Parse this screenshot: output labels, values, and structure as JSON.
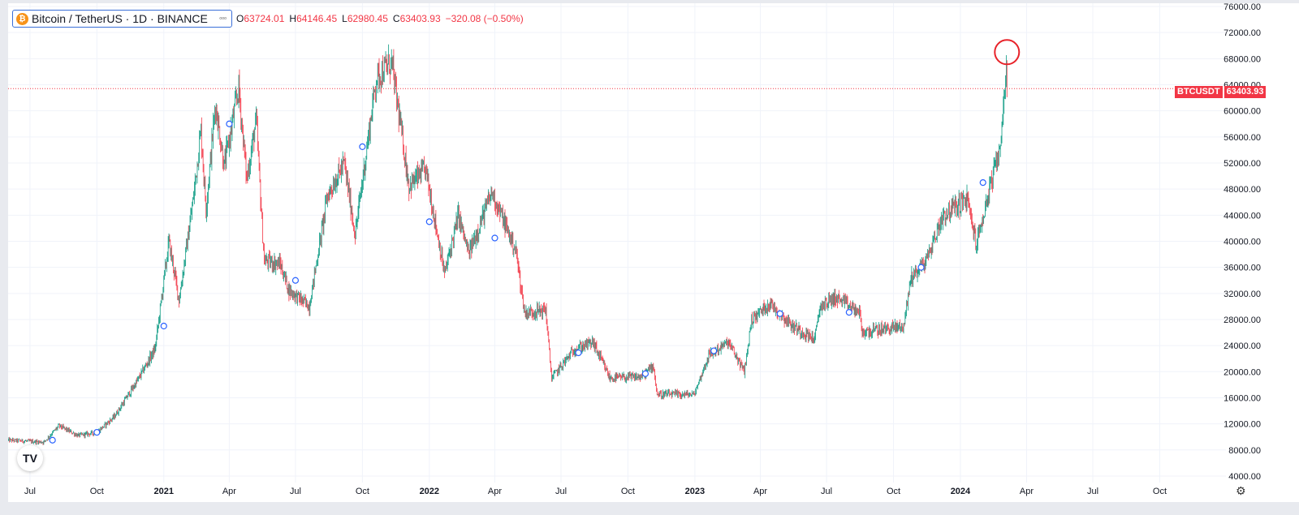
{
  "header": {
    "symbol_label": "Bitcoin / TetherUS · 1D · BINANCE",
    "ohlc": [
      {
        "label": "O",
        "value": "63724.01"
      },
      {
        "label": "H",
        "value": "64146.45"
      },
      {
        "label": "L",
        "value": "62980.45"
      },
      {
        "label": "C",
        "value": "63403.93"
      },
      {
        "label": "",
        "value": "−320.08 (−0.50%)"
      }
    ]
  },
  "price_tag": {
    "ticker": "BTCUSDT",
    "price": "63403.93"
  },
  "colors": {
    "up": "#089981",
    "down": "#f23645",
    "grid": "#f0f3fa",
    "marker": "#2962ff",
    "highlight": "#e8232a"
  },
  "icons": {
    "logo": "tradingview-logo-icon",
    "settings": "gear-icon",
    "symbol": "bitcoin-icon"
  },
  "chart_data": {
    "type": "candlestick",
    "instrument": "BTCUSDT",
    "interval": "1D",
    "y_axis": {
      "side": "right",
      "range": [
        3000,
        76500
      ],
      "ticks": [
        4000,
        8000,
        12000,
        16000,
        20000,
        24000,
        28000,
        32000,
        36000,
        40000,
        44000,
        48000,
        52000,
        56000,
        60000,
        64000,
        68000,
        72000,
        76000
      ],
      "tick_labels": [
        "4000.00",
        "8000.00",
        "12000.00",
        "16000.00",
        "20000.00",
        "24000.00",
        "28000.00",
        "32000.00",
        "36000.00",
        "40000.00",
        "44000.00",
        "48000.00",
        "52000.00",
        "56000.00",
        "60000.00",
        "64000.00",
        "68000.00",
        "72000.00",
        "76000.00"
      ]
    },
    "x_axis": {
      "range": [
        "2020-06-01",
        "2024-12-31"
      ],
      "ticks": [
        "2020-07-01",
        "2020-10-01",
        "2021-01-01",
        "2021-04-01",
        "2021-07-01",
        "2021-10-01",
        "2022-01-01",
        "2022-04-01",
        "2022-07-01",
        "2022-10-01",
        "2023-01-01",
        "2023-04-01",
        "2023-07-01",
        "2023-10-01",
        "2024-01-01",
        "2024-04-01",
        "2024-07-01",
        "2024-10-01"
      ],
      "tick_labels": [
        "Jul",
        "Oct",
        "2021",
        "Apr",
        "Jul",
        "Oct",
        "2022",
        "Apr",
        "Jul",
        "Oct",
        "2023",
        "Apr",
        "Jul",
        "Oct",
        "2024",
        "Apr",
        "Jul",
        "Oct"
      ],
      "bold_labels": [
        "2021",
        "2022",
        "2023",
        "2024"
      ]
    },
    "grid": true,
    "price_trend_keypoints": [
      [
        "2020-06-01",
        9500
      ],
      [
        "2020-07-20",
        9200
      ],
      [
        "2020-08-10",
        11700
      ],
      [
        "2020-09-05",
        10200
      ],
      [
        "2020-10-01",
        10700
      ],
      [
        "2020-10-25",
        13100
      ],
      [
        "2020-11-25",
        18500
      ],
      [
        "2020-12-20",
        23500
      ],
      [
        "2021-01-08",
        40000
      ],
      [
        "2021-01-22",
        31000
      ],
      [
        "2021-02-10",
        46000
      ],
      [
        "2021-02-21",
        57000
      ],
      [
        "2021-02-28",
        45000
      ],
      [
        "2021-03-13",
        61000
      ],
      [
        "2021-03-25",
        51500
      ],
      [
        "2021-04-14",
        63500
      ],
      [
        "2021-04-25",
        49500
      ],
      [
        "2021-05-08",
        58500
      ],
      [
        "2021-05-19",
        37000
      ],
      [
        "2021-06-10",
        36500
      ],
      [
        "2021-06-22",
        32500
      ],
      [
        "2021-07-20",
        30000
      ],
      [
        "2021-08-14",
        47000
      ],
      [
        "2021-09-06",
        52000
      ],
      [
        "2021-09-21",
        41000
      ],
      [
        "2021-10-20",
        65000
      ],
      [
        "2021-11-10",
        67500
      ],
      [
        "2021-12-04",
        48500
      ],
      [
        "2021-12-27",
        51000
      ],
      [
        "2022-01-22",
        35000
      ],
      [
        "2022-02-10",
        44000
      ],
      [
        "2022-02-24",
        38000
      ],
      [
        "2022-03-28",
        47500
      ],
      [
        "2022-04-30",
        38500
      ],
      [
        "2022-05-12",
        29000
      ],
      [
        "2022-06-10",
        29500
      ],
      [
        "2022-06-18",
        19000
      ],
      [
        "2022-07-20",
        23500
      ],
      [
        "2022-08-14",
        24500
      ],
      [
        "2022-09-06",
        19000
      ],
      [
        "2022-10-20",
        19200
      ],
      [
        "2022-11-05",
        21000
      ],
      [
        "2022-11-10",
        16500
      ],
      [
        "2022-12-31",
        16500
      ],
      [
        "2023-01-20",
        22500
      ],
      [
        "2023-02-16",
        24500
      ],
      [
        "2023-03-10",
        20000
      ],
      [
        "2023-03-20",
        28000
      ],
      [
        "2023-04-14",
        30500
      ],
      [
        "2023-05-15",
        27000
      ],
      [
        "2023-06-15",
        25000
      ],
      [
        "2023-06-22",
        30000
      ],
      [
        "2023-07-13",
        31400
      ],
      [
        "2023-08-16",
        29000
      ],
      [
        "2023-08-18",
        26000
      ],
      [
        "2023-10-15",
        27000
      ],
      [
        "2023-10-25",
        34500
      ],
      [
        "2023-11-15",
        37000
      ],
      [
        "2023-12-08",
        44000
      ],
      [
        "2024-01-10",
        46500
      ],
      [
        "2024-01-23",
        39500
      ],
      [
        "2024-02-10",
        48000
      ],
      [
        "2024-02-20",
        52000
      ],
      [
        "2024-02-27",
        57000
      ],
      [
        "2024-03-04",
        68000
      ],
      [
        "2024-03-05",
        63400
      ]
    ],
    "last_price": 63403.93,
    "highlight_circle": {
      "date": "2024-03-05",
      "value": 69000
    },
    "event_markers": [
      [
        "2020-08-01",
        9500
      ],
      [
        "2020-10-01",
        10700
      ],
      [
        "2021-01-01",
        27000
      ],
      [
        "2021-04-01",
        58000
      ],
      [
        "2021-07-01",
        34000
      ],
      [
        "2021-10-01",
        54500
      ],
      [
        "2022-01-01",
        43000
      ],
      [
        "2022-04-01",
        40500
      ],
      [
        "2022-07-25",
        22900
      ],
      [
        "2022-10-25",
        19700
      ],
      [
        "2023-01-27",
        23200
      ],
      [
        "2023-04-28",
        28900
      ],
      [
        "2023-08-01",
        29100
      ],
      [
        "2023-11-08",
        36000
      ],
      [
        "2024-02-01",
        49000
      ]
    ]
  }
}
